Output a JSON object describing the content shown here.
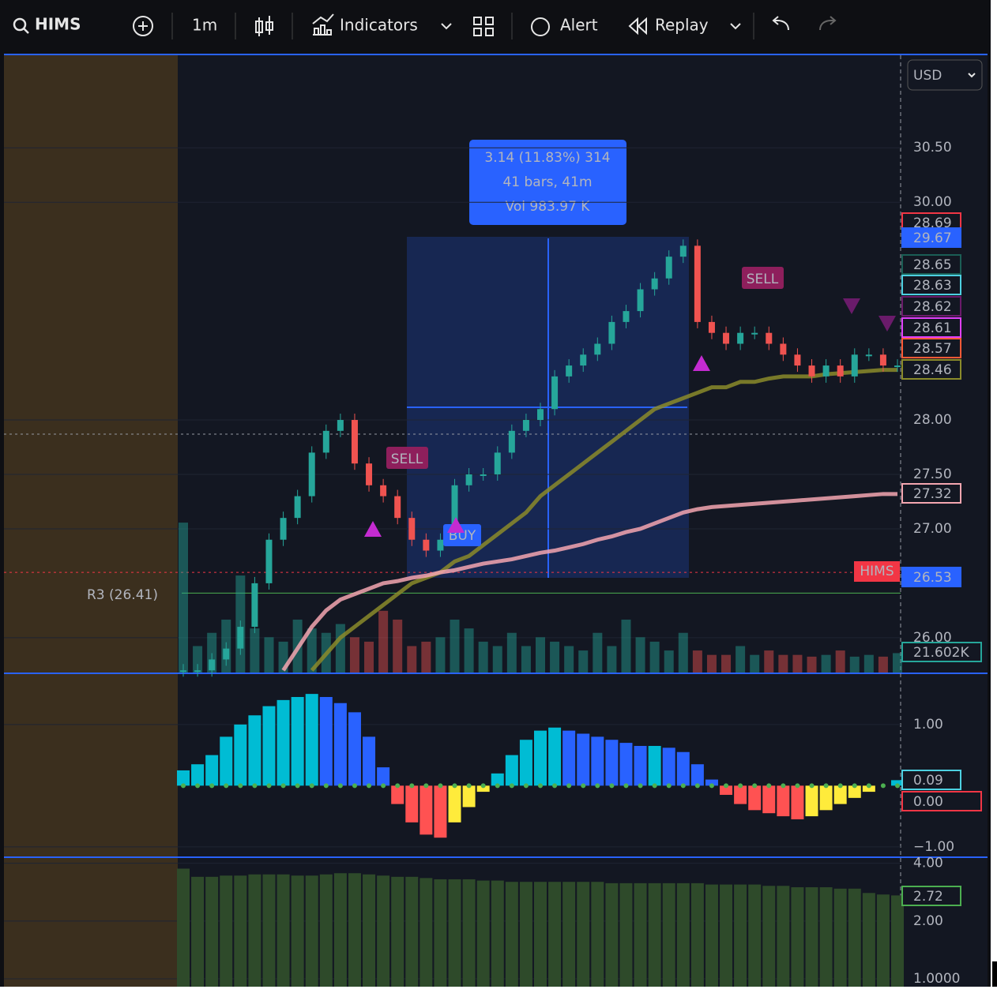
{
  "toolbar": {
    "symbol": "HIMS",
    "interval": "1m",
    "indicators": "Indicators",
    "alert": "Alert",
    "replay": "Replay",
    "currency": "USD"
  },
  "measure": {
    "line1": "3.14 (11.83%) 314",
    "line2": "41 bars, 41m",
    "line3": "Vol 983.97 K"
  },
  "annotations": {
    "sell1": "SELL",
    "sell2": "SELL",
    "buy": "BUY",
    "pivot": "R3 (26.41)",
    "symbol_tag": "HIMS"
  },
  "chart_data": [
    {
      "type": "candlestick",
      "ylim": [
        25.68,
        31.35
      ],
      "yticks": [
        {
          "value": 30.5,
          "label": "30.50"
        },
        {
          "value": 30,
          "label": "30.00"
        },
        {
          "value": 28,
          "label": "28.00"
        },
        {
          "value": 27.5,
          "label": "27.50"
        },
        {
          "value": 27,
          "label": "27.00"
        },
        {
          "value": 26,
          "label": "26.00"
        }
      ],
      "up_color": "#26a69a",
      "down_color": "#ef5350",
      "values": [
        25.7,
        25.7,
        25.8,
        25.9,
        26.1,
        26.5,
        26.9,
        27.1,
        27.3,
        27.7,
        27.9,
        28.0,
        27.6,
        27.4,
        27.3,
        27.1,
        26.9,
        26.8,
        26.9,
        27.4,
        27.5,
        27.5,
        27.7,
        27.9,
        28.0,
        28.1,
        28.4,
        28.5,
        28.6,
        28.7,
        28.9,
        29.0,
        29.2,
        29.3,
        29.5,
        29.6,
        28.9,
        28.8,
        28.7,
        28.8,
        28.8,
        28.7,
        28.6,
        28.5,
        28.4,
        28.5,
        28.4,
        28.6,
        28.6,
        28.5,
        28.5
      ],
      "series": [
        {
          "color": "#8b8b2a",
          "values": [
            null,
            null,
            null,
            null,
            null,
            null,
            null,
            null,
            null,
            25.7,
            25.85,
            26.0,
            26.1,
            26.2,
            26.3,
            26.4,
            26.5,
            26.55,
            26.6,
            26.7,
            26.75,
            26.85,
            26.95,
            27.05,
            27.15,
            27.3,
            27.4,
            27.5,
            27.6,
            27.7,
            27.8,
            27.9,
            28.0,
            28.1,
            28.15,
            28.2,
            28.25,
            28.3,
            28.3,
            28.35,
            28.35,
            28.38,
            28.4,
            28.4,
            28.4,
            28.42,
            28.43,
            28.44,
            28.45,
            28.46,
            28.46
          ]
        },
        {
          "color": "#f4a6b0",
          "values": [
            null,
            null,
            null,
            null,
            null,
            null,
            null,
            25.7,
            25.9,
            26.1,
            26.25,
            26.35,
            26.4,
            26.45,
            26.5,
            26.52,
            26.55,
            26.57,
            26.6,
            26.62,
            26.65,
            26.68,
            26.7,
            26.72,
            26.75,
            26.78,
            26.8,
            26.83,
            26.86,
            26.9,
            26.93,
            26.97,
            27.0,
            27.05,
            27.1,
            27.15,
            27.18,
            27.2,
            27.21,
            27.22,
            27.23,
            27.24,
            27.25,
            27.26,
            27.27,
            27.28,
            27.29,
            27.3,
            27.31,
            27.32,
            27.32
          ]
        }
      ],
      "volume": {
        "axis": "y2",
        "values": [
          170,
          30,
          45,
          60,
          110,
          50,
          40,
          35,
          60,
          50,
          45,
          55,
          40,
          35,
          70,
          60,
          30,
          35,
          40,
          60,
          50,
          35,
          30,
          45,
          30,
          40,
          35,
          30,
          25,
          45,
          30,
          60,
          40,
          35,
          25,
          45,
          25,
          20,
          20,
          30,
          20,
          25,
          20,
          20,
          18,
          20,
          25,
          18,
          20,
          18,
          22
        ]
      },
      "y2lim": [
        0,
        700
      ],
      "hlines": [
        {
          "value": 27.87,
          "color": "#9598a1"
        },
        {
          "value": 26.6,
          "color": "#f23645"
        },
        {
          "value": 26.41,
          "color": "#4caf50"
        }
      ],
      "badges": [
        {
          "value": 28.69,
          "color": "#f23645",
          "filled": false
        },
        {
          "value": 29.67,
          "color": "#2962ff",
          "filled": true
        },
        {
          "value": 28.65,
          "color": "#1b5e55",
          "filled": false
        },
        {
          "value": 28.63,
          "color": "#4dd0e1",
          "filled": false
        },
        {
          "value": 28.62,
          "color": "#6a1b6a",
          "filled": false
        },
        {
          "value": 28.61,
          "color": "#e040fb",
          "filled": false
        },
        {
          "value": 28.57,
          "color": "#ff5a36",
          "filled": false
        },
        {
          "value": 28.46,
          "color": "#8b8b2a",
          "filled": false
        },
        {
          "value": 27.32,
          "color": "#f4a6b0",
          "filled": false
        },
        {
          "value": 26.53,
          "color": "#2962ff",
          "filled": true
        },
        {
          "value": 21.602,
          "label": "21.602K",
          "color": "#26a69a",
          "filled": false
        }
      ]
    },
    {
      "type": "bar",
      "ylim": [
        -1.17,
        1.85
      ],
      "yticks": [
        {
          "value": 1,
          "label": "1.00"
        },
        {
          "value": -1,
          "label": "−1.00"
        }
      ],
      "colors": {
        "pos_up": "#00bcd4",
        "pos_down": "#2962ff",
        "neg_down": "#ff5252",
        "neg_up": "#ffeb3b"
      },
      "values": [
        0.25,
        0.35,
        0.5,
        0.8,
        1.0,
        1.15,
        1.3,
        1.4,
        1.45,
        1.5,
        1.45,
        1.35,
        1.2,
        0.8,
        0.3,
        -0.3,
        -0.6,
        -0.8,
        -0.85,
        -0.6,
        -0.35,
        -0.1,
        0.2,
        0.5,
        0.75,
        0.9,
        0.95,
        0.9,
        0.85,
        0.8,
        0.75,
        0.7,
        0.65,
        0.65,
        0.62,
        0.55,
        0.35,
        0.1,
        -0.15,
        -0.3,
        -0.4,
        -0.45,
        -0.5,
        -0.55,
        -0.5,
        -0.4,
        -0.3,
        -0.2,
        -0.1,
        0.0,
        0.09
      ],
      "badges": [
        {
          "value": 0.09,
          "color": "#4dd0e1",
          "filled": false
        },
        {
          "value": 0,
          "label": "0.00",
          "color": "#f23645",
          "filled": false
        }
      ]
    },
    {
      "type": "bar",
      "log": true,
      "ylim": [
        0.91,
        4.3
      ],
      "yticks": [
        {
          "value": 4,
          "label": "4.00"
        },
        {
          "value": 2,
          "label": "2.00"
        },
        {
          "value": 1,
          "label": "1.0000"
        }
      ],
      "color": "#2e4a2a",
      "values": [
        3.75,
        3.4,
        3.4,
        3.45,
        3.45,
        3.5,
        3.5,
        3.5,
        3.45,
        3.45,
        3.5,
        3.55,
        3.55,
        3.5,
        3.45,
        3.4,
        3.4,
        3.35,
        3.3,
        3.3,
        3.3,
        3.25,
        3.25,
        3.2,
        3.2,
        3.2,
        3.2,
        3.2,
        3.2,
        3.2,
        3.15,
        3.15,
        3.15,
        3.15,
        3.15,
        3.15,
        3.15,
        3.1,
        3.1,
        3.1,
        3.1,
        3.05,
        3.05,
        3.0,
        3.0,
        3.0,
        2.95,
        2.95,
        2.8,
        2.75,
        2.72
      ],
      "badges": [
        {
          "value": 2.72,
          "color": "#4caf50",
          "filled": false
        }
      ]
    }
  ]
}
